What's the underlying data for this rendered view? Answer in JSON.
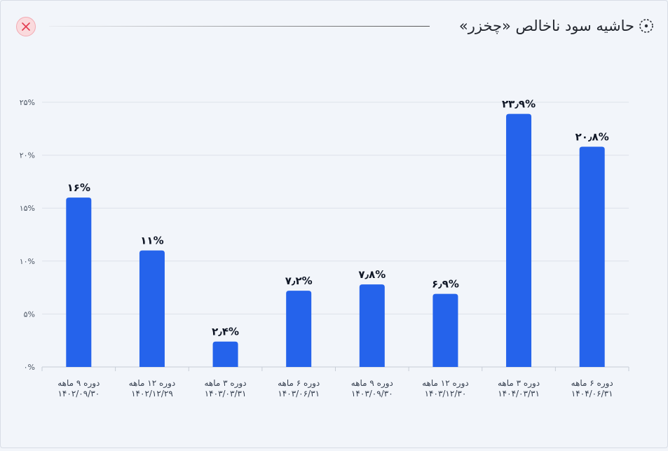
{
  "header": {
    "title": "حاشیه سود ناخالص «چخزر»",
    "title_icon": "dotted-circle-icon",
    "close_icon": "close-x-icon"
  },
  "colors": {
    "bar": "#2563eb",
    "grid": "#dde2ea",
    "axis": "#c7cdd6",
    "close_bg": "#fadadd",
    "close_x": "#e23a4f"
  },
  "chart_data": {
    "type": "bar",
    "categories": [
      [
        "دوره ۹ ماهه",
        "۱۴۰۲/۰۹/۳۰"
      ],
      [
        "دوره ۱۲ ماهه",
        "۱۴۰۲/۱۲/۲۹"
      ],
      [
        "دوره ۳ ماهه",
        "۱۴۰۳/۰۳/۳۱"
      ],
      [
        "دوره ۶ ماهه",
        "۱۴۰۳/۰۶/۳۱"
      ],
      [
        "دوره ۹ ماهه",
        "۱۴۰۳/۰۹/۳۰"
      ],
      [
        "دوره ۱۲ ماهه",
        "۱۴۰۳/۱۲/۳۰"
      ],
      [
        "دوره ۳ ماهه",
        "۱۴۰۴/۰۳/۳۱"
      ],
      [
        "دوره ۶ ماهه",
        "۱۴۰۴/۰۶/۳۱"
      ]
    ],
    "values": [
      16,
      11,
      2.4,
      7.2,
      7.8,
      6.9,
      23.9,
      20.8
    ],
    "data_labels": [
      "۱۶%",
      "۱۱%",
      "۲٫۴%",
      "۷٫۲%",
      "۷٫۸%",
      "۶٫۹%",
      "۲۳٫۹%",
      "۲۰٫۸%"
    ],
    "ylim": [
      0,
      25
    ],
    "yticks": [
      0,
      5,
      10,
      15,
      20,
      25
    ],
    "ytick_labels": [
      "۰%",
      "۵%",
      "۱۰%",
      "۱۵%",
      "۲۰%",
      "۲۵%"
    ],
    "grid": true,
    "title": "",
    "xlabel": "",
    "ylabel": ""
  }
}
